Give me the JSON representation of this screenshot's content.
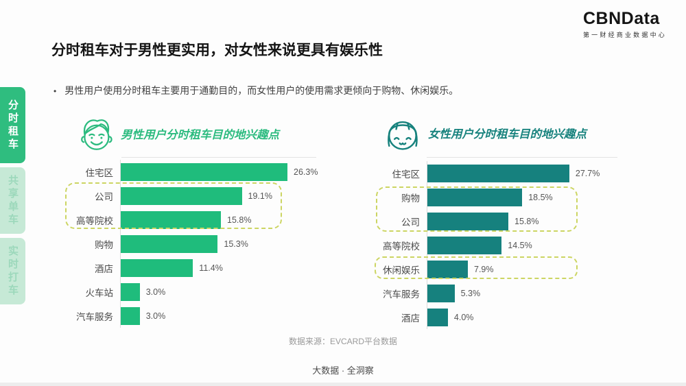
{
  "page": {
    "logo": {
      "brand": "CBNData",
      "subtitle": "第一财经商业数据中心"
    },
    "title": "分时租车对于男性更实用，对女性来说更具有娱乐性",
    "bullet_marker": "•",
    "bullet": "男性用户使用分时租车主要用于通勤目的，而女性用户的使用需求更倾向于购物、休闲娱乐。",
    "source": "数据来源：EVCARD平台数据",
    "footer": "大数据 · 全洞察"
  },
  "sidebar": {
    "tabs": [
      {
        "label": "分时租车",
        "active": true
      },
      {
        "label": "共享单车",
        "active": false
      },
      {
        "label": "实时打车",
        "active": false
      }
    ]
  },
  "colors": {
    "male_bar": "#1fbc7c",
    "female_bar": "#16817e",
    "active_tab": "#2fbd7f",
    "inactive_tab": "#c6e9d6",
    "highlight_dash": "#ccd562"
  },
  "chart_data": [
    {
      "type": "bar",
      "orientation": "horizontal",
      "title": "男性用户分时租车目的地兴趣点",
      "icon": "male-face-icon",
      "categories": [
        "住宅区",
        "公司",
        "高等院校",
        "购物",
        "酒店",
        "火车站",
        "汽车服务"
      ],
      "values": [
        26.3,
        19.1,
        15.8,
        15.3,
        11.4,
        3.0,
        3.0
      ],
      "value_labels": [
        "26.3%",
        "19.1%",
        "15.8%",
        "15.3%",
        "11.4%",
        "3.0%",
        "3.0%"
      ],
      "highlighted_categories": [
        "公司",
        "高等院校"
      ],
      "xlim": [
        0,
        30
      ],
      "grid": false,
      "legend": false
    },
    {
      "type": "bar",
      "orientation": "horizontal",
      "title": "女性用户分时租车目的地兴趣点",
      "icon": "female-face-icon",
      "categories": [
        "住宅区",
        "购物",
        "公司",
        "高等院校",
        "休闲娱乐",
        "汽车服务",
        "酒店"
      ],
      "values": [
        27.7,
        18.5,
        15.8,
        14.5,
        7.9,
        5.3,
        4.0
      ],
      "value_labels": [
        "27.7%",
        "18.5%",
        "15.8%",
        "14.5%",
        "7.9%",
        "5.3%",
        "4.0%"
      ],
      "highlighted_categories": [
        "购物",
        "公司",
        "休闲娱乐"
      ],
      "xlim": [
        0,
        30
      ],
      "grid": false,
      "legend": false
    }
  ]
}
